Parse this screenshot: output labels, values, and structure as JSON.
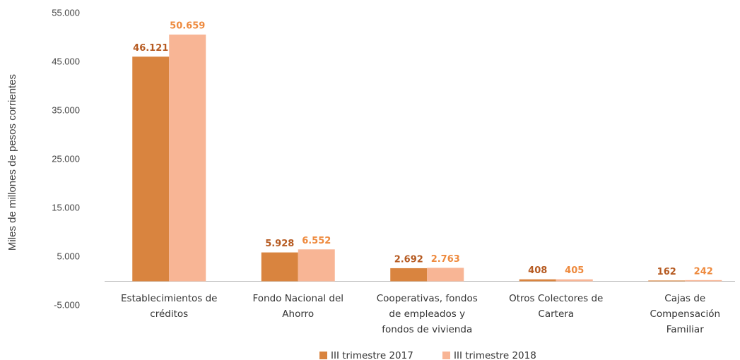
{
  "chart_data": {
    "type": "bar",
    "y_label": "Miles de millones de pesos corrientes",
    "categories": [
      [
        "Establecimientos de",
        "créditos"
      ],
      [
        "Fondo Nacional del",
        "Ahorro"
      ],
      [
        "Cooperativas, fondos",
        "de empleados y",
        "fondos de vivienda"
      ],
      [
        "Otros Colectores de",
        "Cartera"
      ],
      [
        "Cajas de",
        "Compensación",
        "Familiar"
      ]
    ],
    "series": [
      {
        "name": "III trimestre 2017",
        "color": "#d9843f",
        "label_color": "#b65b22",
        "values": [
          46121,
          5928,
          2692,
          408,
          162
        ],
        "value_labels": [
          "46.121",
          "5.928",
          "2.692",
          "408",
          "162"
        ]
      },
      {
        "name": "III trimestre 2018",
        "color": "#f8b595",
        "label_color": "#ee8a3e",
        "values": [
          50659,
          6552,
          2763,
          405,
          242
        ],
        "value_labels": [
          "50.659",
          "6.552",
          "2.763",
          "405",
          "242"
        ]
      }
    ],
    "ylim": [
      -5000,
      55000
    ],
    "yticks": [
      {
        "value": -5000,
        "label": "-5.000"
      },
      {
        "value": 5000,
        "label": "5.000"
      },
      {
        "value": 15000,
        "label": "15.000"
      },
      {
        "value": 25000,
        "label": "25.000"
      },
      {
        "value": 35000,
        "label": "35.000"
      },
      {
        "value": 45000,
        "label": "45.000"
      },
      {
        "value": 55000,
        "label": "55.000"
      }
    ],
    "grid": false,
    "legend": "bottom"
  }
}
